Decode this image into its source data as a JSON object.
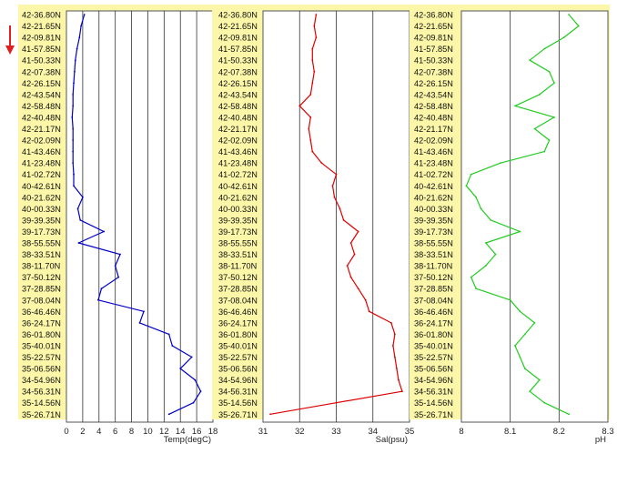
{
  "arrow": {
    "color": "#e02020",
    "icon": "down-arrow-icon"
  },
  "panel_background": "#fbf6a8",
  "chart_data": [
    {
      "type": "line",
      "xlabel": "Temp(degC)",
      "xlim": [
        0,
        18
      ],
      "xticks": [
        "0",
        "2",
        "4",
        "6",
        "8",
        "10",
        "12",
        "14",
        "16",
        "18"
      ],
      "color": "#0000c8",
      "grid": true,
      "y_axis_labels": [
        "42-36.80N",
        "42-21.65N",
        "42-09.81N",
        "41-57.85N",
        "41-50.33N",
        "42-07.38N",
        "42-26.15N",
        "42-43.54N",
        "42-58.48N",
        "42-40.48N",
        "42-21.17N",
        "42-02.09N",
        "41-43.46N",
        "41-23.48N",
        "41-02.72N",
        "40-42.61N",
        "40-21.62N",
        "40-00.33N",
        "39-39.35N",
        "39-17.73N",
        "38-55.55N",
        "38-33.51N",
        "38-11.70N",
        "37-50.12N",
        "37-28.85N",
        "37-08.04N",
        "36-46.46N",
        "36-24.17N",
        "36-01.80N",
        "35-40.01N",
        "35-22.57N",
        "35-06.56N",
        "34-54.96N",
        "34-56.31N",
        "35-14.56N",
        "35-26.71N"
      ],
      "values": [
        2.2,
        1.8,
        1.6,
        1.3,
        1.1,
        1.0,
        0.9,
        0.8,
        0.8,
        0.7,
        0.8,
        0.8,
        0.8,
        0.8,
        0.9,
        0.9,
        2.0,
        1.4,
        1.7,
        4.6,
        1.5,
        6.6,
        6.0,
        6.4,
        4.3,
        3.9,
        9.5,
        9.0,
        12.6,
        13.0,
        15.4,
        14.0,
        15.8,
        16.5,
        15.6,
        12.6
      ]
    },
    {
      "type": "line",
      "xlabel": "Sal(psu)",
      "xlim": [
        31,
        35
      ],
      "xticks": [
        "31",
        "32",
        "33",
        "34",
        "35"
      ],
      "color": "#dd0000",
      "grid": true,
      "y_axis_labels": [
        "42-36.80N",
        "42-21.65N",
        "42-09.81N",
        "41-57.85N",
        "41-50.33N",
        "42-07.38N",
        "42-26.15N",
        "42-43.54N",
        "42-58.48N",
        "42-40.48N",
        "42-21.17N",
        "42-02.09N",
        "41-43.46N",
        "41-23.48N",
        "41-02.72N",
        "40-42.61N",
        "40-21.62N",
        "40-00.33N",
        "39-39.35N",
        "39-17.73N",
        "38-55.55N",
        "38-33.51N",
        "38-11.70N",
        "37-50.12N",
        "37-28.85N",
        "37-08.04N",
        "36-46.46N",
        "36-24.17N",
        "36-01.80N",
        "35-40.01N",
        "35-22.57N",
        "35-06.56N",
        "34-54.96N",
        "34-56.31N",
        "35-14.56N",
        "35-26.71N"
      ],
      "values": [
        32.45,
        32.4,
        32.45,
        32.35,
        32.35,
        32.4,
        32.35,
        32.3,
        32.0,
        32.3,
        32.25,
        32.3,
        32.35,
        32.6,
        33.0,
        32.9,
        32.95,
        33.1,
        33.2,
        33.6,
        33.4,
        33.5,
        33.3,
        33.4,
        33.6,
        33.8,
        33.9,
        34.5,
        34.6,
        34.55,
        34.6,
        34.65,
        34.7,
        34.8,
        33.0,
        31.2
      ]
    },
    {
      "type": "line",
      "xlabel": "pH",
      "xlim": [
        8,
        8.3
      ],
      "xticks": [
        "8",
        "8.1",
        "8.2",
        "8.3"
      ],
      "color": "#22cc22",
      "grid": true,
      "y_axis_labels": [
        "42-36.80N",
        "42-21.65N",
        "42-09.81N",
        "41-57.85N",
        "41-50.33N",
        "42-07.38N",
        "42-26.15N",
        "42-43.54N",
        "42-58.48N",
        "42-40.48N",
        "42-21.17N",
        "42-02.09N",
        "41-43.46N",
        "41-23.48N",
        "41-02.72N",
        "40-42.61N",
        "40-21.62N",
        "40-00.33N",
        "39-39.35N",
        "39-17.73N",
        "38-55.55N",
        "38-33.51N",
        "38-11.70N",
        "37-50.12N",
        "37-28.85N",
        "37-08.04N",
        "36-46.46N",
        "36-24.17N",
        "36-01.80N",
        "35-40.01N",
        "35-22.57N",
        "35-06.56N",
        "34-54.96N",
        "34-56.31N",
        "35-14.56N",
        "35-26.71N"
      ],
      "values": [
        8.22,
        8.24,
        8.21,
        8.17,
        8.14,
        8.18,
        8.19,
        8.16,
        8.11,
        8.19,
        8.15,
        8.18,
        8.17,
        8.08,
        8.02,
        8.01,
        8.03,
        8.04,
        8.06,
        8.12,
        8.05,
        8.07,
        8.05,
        8.02,
        8.03,
        8.1,
        8.12,
        8.15,
        8.13,
        8.11,
        8.12,
        8.13,
        8.16,
        8.14,
        8.17,
        8.22
      ]
    }
  ]
}
